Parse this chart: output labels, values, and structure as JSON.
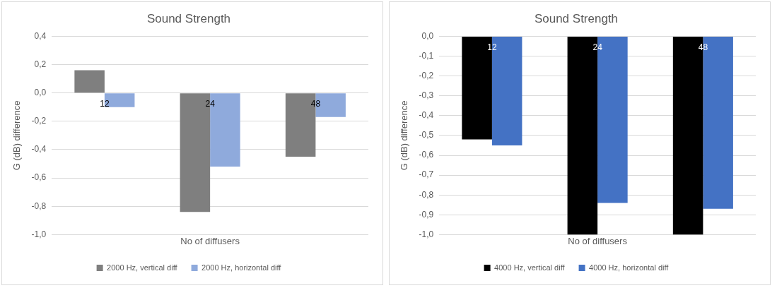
{
  "chart_data": [
    {
      "type": "bar",
      "title": "Sound Strength",
      "xlabel": "No of diffusers",
      "ylabel": "G (dB) difference",
      "categories": [
        "12",
        "24",
        "48"
      ],
      "series": [
        {
          "name": "2000 Hz, vertical diff",
          "color": "#7f7f7f",
          "values": [
            0.16,
            -0.84,
            -0.45
          ]
        },
        {
          "name": "2000 Hz, horizontal diff",
          "color": "#8faadc",
          "values": [
            -0.1,
            -0.52,
            -0.17
          ]
        }
      ],
      "ylim": [
        -1,
        0.4
      ],
      "yticks": [
        {
          "value": -1,
          "label": "-1,0"
        },
        {
          "value": -0.8,
          "label": "-0,8"
        },
        {
          "value": -0.6,
          "label": "-0,6"
        },
        {
          "value": -0.4,
          "label": "-0,4"
        },
        {
          "value": -0.2,
          "label": "-0,2"
        },
        {
          "value": 0,
          "label": "0,0"
        },
        {
          "value": 0.2,
          "label": "0,2"
        },
        {
          "value": 0.4,
          "label": "0,4"
        }
      ],
      "grid": "y",
      "legend": "bottom"
    },
    {
      "type": "bar",
      "title": "Sound Strength",
      "xlabel": "No of diffusers",
      "ylabel": "G (dB) difference",
      "categories": [
        "12",
        "24",
        "48"
      ],
      "series": [
        {
          "name": "4000 Hz, vertical diff",
          "color": "#000000",
          "values": [
            -0.52,
            -1.0,
            -1.0
          ]
        },
        {
          "name": "4000 Hz, horizontal diff",
          "color": "#4472c4",
          "values": [
            -0.55,
            -0.84,
            -0.87
          ]
        }
      ],
      "ylim": [
        -1,
        0
      ],
      "yticks": [
        {
          "value": -1,
          "label": "-1,0"
        },
        {
          "value": -0.9,
          "label": "-0,9"
        },
        {
          "value": -0.8,
          "label": "-0,8"
        },
        {
          "value": -0.7,
          "label": "-0,7"
        },
        {
          "value": -0.6,
          "label": "-0,6"
        },
        {
          "value": -0.5,
          "label": "-0,5"
        },
        {
          "value": -0.4,
          "label": "-0,4"
        },
        {
          "value": -0.3,
          "label": "-0,3"
        },
        {
          "value": -0.2,
          "label": "-0,2"
        },
        {
          "value": -0.1,
          "label": "-0,1"
        },
        {
          "value": 0,
          "label": "0,0"
        }
      ],
      "grid": "y",
      "legend": "bottom"
    }
  ]
}
